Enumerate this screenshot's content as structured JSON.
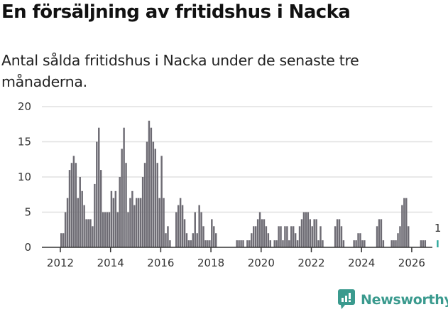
{
  "header": {
    "title": "En försäljning av fritidshus i Nacka",
    "subtitle": "Antal sålda fritidshus i Nacka under de senaste tre månaderna."
  },
  "brand": {
    "name": "Newsworthy",
    "color": "#3a9a8e"
  },
  "colors": {
    "bar": "#6e6c74",
    "highlight": "#2aa79b",
    "grid": "#e0e0e0",
    "axis": "#333333"
  },
  "chart_data": {
    "type": "bar",
    "title": "En försäljning av fritidshus i Nacka",
    "subtitle": "Antal sålda fritidshus i Nacka under de senaste tre månaderna.",
    "xlabel": "",
    "ylabel": "",
    "ylim": [
      0,
      20
    ],
    "yticks": [
      0,
      5,
      10,
      15,
      20
    ],
    "xticks": [
      "2012",
      "2014",
      "2016",
      "2018",
      "2020",
      "2022",
      "2024",
      "2026"
    ],
    "grid": true,
    "legend": null,
    "start_month": "2012-01",
    "frequency": "monthly",
    "highlight_last": true,
    "annotation": {
      "label": "1",
      "at": "2026-01"
    },
    "values": [
      2,
      2,
      5,
      7,
      11,
      12,
      13,
      12,
      7,
      10,
      8,
      6,
      4,
      4,
      4,
      3,
      9,
      15,
      17,
      11,
      5,
      5,
      5,
      5,
      8,
      7,
      8,
      5,
      10,
      14,
      17,
      12,
      5,
      7,
      8,
      6,
      7,
      7,
      7,
      10,
      12,
      15,
      18,
      17,
      15,
      14,
      12,
      7,
      13,
      7,
      2,
      3,
      1,
      0,
      0,
      5,
      6,
      7,
      6,
      4,
      2,
      1,
      1,
      2,
      5,
      2,
      6,
      5,
      3,
      1,
      1,
      1,
      4,
      3,
      2,
      0,
      0,
      0,
      0,
      0,
      0,
      0,
      0,
      0,
      1,
      1,
      1,
      1,
      0,
      1,
      1,
      2,
      3,
      3,
      4,
      5,
      4,
      4,
      3,
      2,
      1,
      0,
      1,
      1,
      3,
      3,
      1,
      3,
      3,
      1,
      3,
      3,
      2,
      1,
      3,
      4,
      5,
      5,
      5,
      4,
      3,
      4,
      4,
      1,
      3,
      1,
      0,
      0,
      0,
      0,
      0,
      3,
      4,
      4,
      3,
      1,
      0,
      0,
      0,
      0,
      1,
      1,
      2,
      2,
      1,
      1,
      0,
      0,
      0,
      0,
      0,
      3,
      4,
      4,
      1,
      0,
      0,
      0,
      1,
      1,
      1,
      2,
      3,
      6,
      7,
      7,
      3,
      0,
      0,
      0,
      0,
      0,
      1,
      1,
      1,
      0,
      0,
      0,
      0,
      0,
      1
    ]
  }
}
